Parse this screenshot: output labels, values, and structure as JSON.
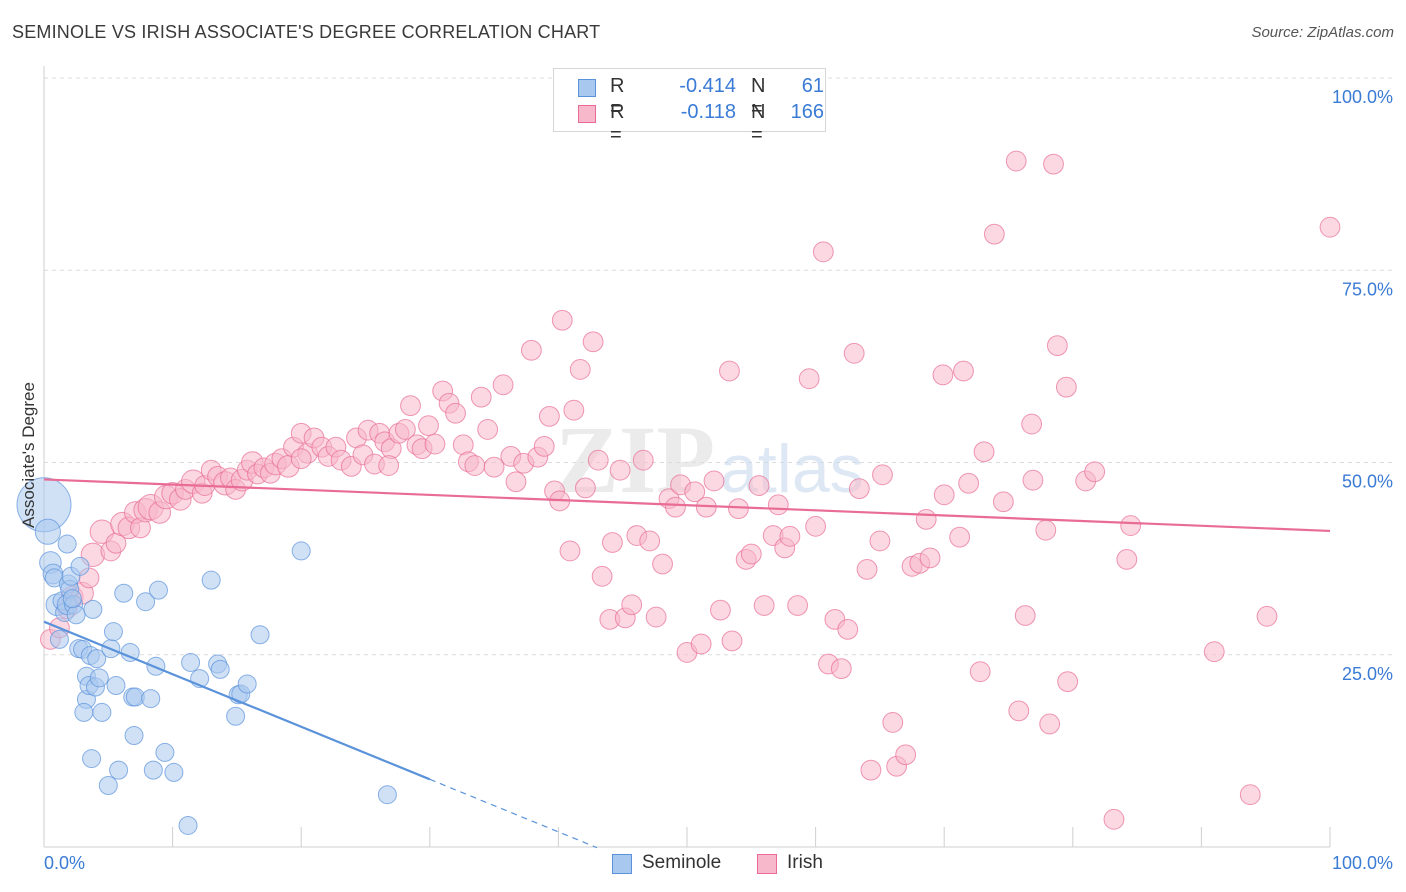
{
  "header": {
    "title": "SEMINOLE VS IRISH ASSOCIATE'S DEGREE CORRELATION CHART",
    "source": "Source: ZipAtlas.com"
  },
  "watermark": "ZIPatlas",
  "legend": {
    "rows": [
      {
        "r_label": "R =",
        "r_value": "-0.414",
        "n_label": "N =",
        "n_value": "61",
        "color": "#a9c8ef"
      },
      {
        "r_label": "R =",
        "r_value": "-0.118",
        "n_label": "N =",
        "n_value": "166",
        "color": "#f7b8cb"
      }
    ]
  },
  "bottom_legend": [
    "Seminole",
    "Irish"
  ],
  "chart_data": {
    "type": "scatter",
    "title": "SEMINOLE VS IRISH ASSOCIATE'S DEGREE CORRELATION CHART",
    "xlabel": "",
    "ylabel": "Associate's Degree",
    "xlim": [
      0,
      100
    ],
    "ylim": [
      0,
      100
    ],
    "x_tick_labels": [
      "0.0%",
      "100.0%"
    ],
    "y_tick_labels": [
      "100.0%",
      "75.0%",
      "50.0%",
      "25.0%"
    ],
    "grid": true,
    "legend_position": "top-center",
    "series": [
      {
        "name": "Seminole",
        "color": "#5b93db",
        "fill": "#a9c8ef",
        "trend": {
          "x": [
            0,
            30
          ],
          "y": [
            29.3,
            8.8
          ],
          "dashed_to_x": 43
        },
        "points": [
          [
            0,
            44.5,
            3
          ],
          [
            0.3,
            41,
            1.4
          ],
          [
            0.5,
            37,
            1.2
          ],
          [
            0.7,
            35.5,
            1.1
          ],
          [
            0.8,
            35,
            1
          ],
          [
            1,
            31.5,
            1.2
          ],
          [
            1.2,
            27,
            1
          ],
          [
            1.4,
            32,
            1
          ],
          [
            1.6,
            30.5,
            1
          ],
          [
            1.8,
            31.5,
            1.1
          ],
          [
            1.9,
            34.2,
            1
          ],
          [
            2,
            33.5,
            1
          ],
          [
            2.1,
            35.2,
            1
          ],
          [
            2.3,
            31.5,
            1
          ],
          [
            2.5,
            30.2,
            1
          ],
          [
            2.7,
            25.8,
            1
          ],
          [
            1.8,
            39.4,
            1
          ],
          [
            2.8,
            36.5,
            1
          ],
          [
            3,
            25.7,
            1
          ],
          [
            3.3,
            22.2,
            1
          ],
          [
            3.3,
            19.2,
            1
          ],
          [
            3.1,
            17.5,
            1
          ],
          [
            3.5,
            21,
            1
          ],
          [
            3.6,
            24.9,
            1
          ],
          [
            3.7,
            11.5,
            1
          ],
          [
            3.8,
            30.9,
            1
          ],
          [
            4,
            20.8,
            1
          ],
          [
            4.1,
            24.5,
            1
          ],
          [
            4.3,
            22,
            1
          ],
          [
            4.5,
            17.5,
            1
          ],
          [
            5,
            8,
            1
          ],
          [
            5.2,
            25.8,
            1
          ],
          [
            5.4,
            28,
            1
          ],
          [
            5.6,
            21,
            1
          ],
          [
            5.8,
            10,
            1
          ],
          [
            6.2,
            33,
            1
          ],
          [
            6.7,
            25.3,
            1
          ],
          [
            6.9,
            19.5,
            1
          ],
          [
            7,
            14.5,
            1
          ],
          [
            7.1,
            19.5,
            1
          ],
          [
            7.9,
            31.9,
            1
          ],
          [
            8.3,
            19.3,
            1
          ],
          [
            8.5,
            10,
            1
          ],
          [
            8.7,
            23.5,
            1
          ],
          [
            8.9,
            33.4,
            1
          ],
          [
            9.4,
            12.3,
            1
          ],
          [
            10.1,
            9.7,
            1
          ],
          [
            11.2,
            2.8,
            1
          ],
          [
            11.4,
            24,
            1
          ],
          [
            12.1,
            21.9,
            1
          ],
          [
            13,
            34.7,
            1
          ],
          [
            13.5,
            23.8,
            1
          ],
          [
            13.7,
            23.1,
            1
          ],
          [
            14.9,
            17,
            1
          ],
          [
            15.1,
            19.8,
            1
          ],
          [
            15.3,
            19.9,
            1
          ],
          [
            15.8,
            21.2,
            1
          ],
          [
            16.8,
            27.6,
            1
          ],
          [
            20,
            38.5,
            1
          ],
          [
            26.7,
            6.8,
            1
          ],
          [
            2.2,
            32.3,
            1
          ]
        ]
      },
      {
        "name": "Irish",
        "color": "#e86c96",
        "fill": "#f7b8cb",
        "trend": {
          "x": [
            0,
            100
          ],
          "y": [
            47.8,
            41.1
          ]
        },
        "points": [
          [
            0.5,
            27,
            1.1
          ],
          [
            1.2,
            28.5,
            1.1
          ],
          [
            1.8,
            31,
            1.1
          ],
          [
            2.2,
            32.5,
            1.2
          ],
          [
            3,
            33,
            1.2
          ],
          [
            3.5,
            35,
            1.1
          ],
          [
            3.8,
            38,
            1.3
          ],
          [
            4.5,
            41,
            1.3
          ],
          [
            5.2,
            38.5,
            1.1
          ],
          [
            5.6,
            39.5,
            1.1
          ],
          [
            6.1,
            42,
            1.3
          ],
          [
            6.6,
            41.5,
            1.2
          ],
          [
            7.1,
            43.5,
            1.2
          ],
          [
            7.5,
            41.5,
            1.1
          ],
          [
            7.9,
            43.8,
            1.3
          ],
          [
            8.3,
            44.2,
            1.4
          ],
          [
            9,
            43.5,
            1.2
          ],
          [
            9.5,
            45.5,
            1.3
          ],
          [
            10,
            46,
            1.2
          ],
          [
            10.6,
            45.2,
            1.2
          ],
          [
            11,
            46.5,
            1.1
          ],
          [
            11.6,
            47.5,
            1.3
          ],
          [
            12.3,
            46,
            1.1
          ],
          [
            12.5,
            47,
            1.1
          ],
          [
            13,
            49,
            1.1
          ],
          [
            13.5,
            48.2,
            1.1
          ],
          [
            14.1,
            47.3,
            1.3
          ],
          [
            14.5,
            48,
            1.1
          ],
          [
            14.9,
            46.5,
            1.1
          ],
          [
            15.4,
            47.7,
            1.2
          ],
          [
            15.8,
            49,
            1.1
          ],
          [
            16.2,
            50,
            1.2
          ],
          [
            16.6,
            48.5,
            1.1
          ],
          [
            17.1,
            49.3,
            1.1
          ],
          [
            17.6,
            48.6,
            1.1
          ],
          [
            18,
            49.8,
            1.2
          ],
          [
            18.5,
            50.5,
            1.1
          ],
          [
            19,
            49.5,
            1.2
          ],
          [
            19.4,
            52,
            1.1
          ],
          [
            20,
            53.8,
            1.1
          ],
          [
            20.5,
            51.2,
            1.1
          ],
          [
            21,
            53.2,
            1.1
          ],
          [
            21.6,
            52,
            1.1
          ],
          [
            22.1,
            50.8,
            1.1
          ],
          [
            22.7,
            52,
            1.1
          ],
          [
            23.1,
            50.3,
            1.1
          ],
          [
            23.9,
            49.5,
            1.1
          ],
          [
            24.3,
            53.2,
            1.1
          ],
          [
            24.8,
            51,
            1.1
          ],
          [
            25.2,
            54.2,
            1.1
          ],
          [
            25.7,
            49.8,
            1.1
          ],
          [
            26.1,
            53.8,
            1.1
          ],
          [
            26.5,
            52.7,
            1.1
          ],
          [
            27,
            51.8,
            1.1
          ],
          [
            27.6,
            53.8,
            1.1
          ],
          [
            28.1,
            54.3,
            1.1
          ],
          [
            28.5,
            57.4,
            1.1
          ],
          [
            29,
            52.3,
            1.1
          ],
          [
            29.4,
            51.8,
            1.1
          ],
          [
            29.9,
            54.8,
            1.1
          ],
          [
            30.4,
            52.4,
            1.1
          ],
          [
            31,
            59.3,
            1.1
          ],
          [
            31.5,
            57.7,
            1.1
          ],
          [
            32,
            56.4,
            1.1
          ],
          [
            32.6,
            52.3,
            1.1
          ],
          [
            33,
            50.1,
            1.1
          ],
          [
            33.5,
            49.6,
            1.1
          ],
          [
            34,
            58.5,
            1.1
          ],
          [
            34.5,
            54.3,
            1.1
          ],
          [
            35,
            49.4,
            1.1
          ],
          [
            35.7,
            60.1,
            1.1
          ],
          [
            36.3,
            50.8,
            1.1
          ],
          [
            36.7,
            47.5,
            1.1
          ],
          [
            37.3,
            49.9,
            1.1
          ],
          [
            37.9,
            64.6,
            1.1
          ],
          [
            38.4,
            50.7,
            1.1
          ],
          [
            38.9,
            52.1,
            1.1
          ],
          [
            39.3,
            56,
            1.1
          ],
          [
            39.7,
            46.3,
            1.1
          ],
          [
            40.1,
            45,
            1.1
          ],
          [
            40.3,
            68.5,
            1.1
          ],
          [
            40.9,
            38.5,
            1.1
          ],
          [
            41.2,
            56.8,
            1.1
          ],
          [
            41.7,
            62.1,
            1.1
          ],
          [
            42.1,
            46.7,
            1.1
          ],
          [
            42.7,
            65.7,
            1.1
          ],
          [
            43.1,
            50.3,
            1.1
          ],
          [
            43.4,
            35.2,
            1.1
          ],
          [
            44,
            29.6,
            1.1
          ],
          [
            44.2,
            39.6,
            1.1
          ],
          [
            44.8,
            49,
            1.1
          ],
          [
            45.2,
            29.8,
            1.1
          ],
          [
            45.7,
            31.5,
            1.1
          ],
          [
            46.1,
            40.5,
            1.1
          ],
          [
            46.6,
            50.3,
            1.1
          ],
          [
            47.1,
            39.8,
            1.1
          ],
          [
            47.6,
            29.9,
            1.1
          ],
          [
            48.1,
            36.8,
            1.1
          ],
          [
            48.6,
            45.3,
            1.1
          ],
          [
            49.1,
            44.2,
            1.1
          ],
          [
            49.5,
            47.1,
            1.1
          ],
          [
            50,
            25.3,
            1.1
          ],
          [
            50.6,
            46.2,
            1.1
          ],
          [
            51.1,
            26.4,
            1.1
          ],
          [
            51.5,
            44.2,
            1.1
          ],
          [
            52.1,
            47.6,
            1.1
          ],
          [
            52.6,
            30.8,
            1.1
          ],
          [
            53.3,
            61.9,
            1.1
          ],
          [
            53.5,
            26.8,
            1.1
          ],
          [
            54,
            44,
            1.1
          ],
          [
            54.6,
            37.4,
            1.1
          ],
          [
            55,
            38.1,
            1.1
          ],
          [
            55.6,
            47,
            1.1
          ],
          [
            56,
            31.4,
            1.1
          ],
          [
            56.7,
            40.5,
            1.1
          ],
          [
            57.1,
            44.5,
            1.1
          ],
          [
            57.6,
            38.9,
            1.1
          ],
          [
            58,
            40.4,
            1.1
          ],
          [
            58.6,
            31.4,
            1.1
          ],
          [
            59.5,
            60.9,
            1.1
          ],
          [
            60,
            41.7,
            1.1
          ],
          [
            60.6,
            77.4,
            1.1
          ],
          [
            61,
            23.8,
            1.1
          ],
          [
            61.5,
            29.6,
            1.1
          ],
          [
            62,
            23.2,
            1.1
          ],
          [
            62.5,
            28.3,
            1.1
          ],
          [
            63,
            64.2,
            1.1
          ],
          [
            63.4,
            46.6,
            1.1
          ],
          [
            64,
            36.1,
            1.1
          ],
          [
            64.3,
            10,
            1.1
          ],
          [
            65,
            39.8,
            1.1
          ],
          [
            65.2,
            48.4,
            1.1
          ],
          [
            66,
            16.2,
            1.1
          ],
          [
            66.3,
            10.5,
            1.1
          ],
          [
            67,
            12,
            1.1
          ],
          [
            67.5,
            36.5,
            1.1
          ],
          [
            68.1,
            36.9,
            1.1
          ],
          [
            68.6,
            42.6,
            1.1
          ],
          [
            68.9,
            37.6,
            1.1
          ],
          [
            69.9,
            61.4,
            1.1
          ],
          [
            70,
            45.8,
            1.1
          ],
          [
            71.2,
            40.3,
            1.1
          ],
          [
            71.5,
            61.9,
            1.1
          ],
          [
            71.9,
            47.3,
            1.1
          ],
          [
            72.8,
            22.8,
            1.1
          ],
          [
            73.1,
            51.4,
            1.1
          ],
          [
            73.9,
            79.7,
            1.1
          ],
          [
            74.6,
            44.9,
            1.1
          ],
          [
            75.6,
            89.2,
            1.1
          ],
          [
            75.8,
            17.7,
            1.1
          ],
          [
            76.3,
            30.1,
            1.1
          ],
          [
            76.8,
            55,
            1.1
          ],
          [
            76.9,
            47.7,
            1.1
          ],
          [
            77.9,
            41.2,
            1.1
          ],
          [
            78.2,
            16,
            1.1
          ],
          [
            78.5,
            88.8,
            1.1
          ],
          [
            78.8,
            65.2,
            1.1
          ],
          [
            79.5,
            59.8,
            1.1
          ],
          [
            79.6,
            21.5,
            1.1
          ],
          [
            81,
            47.6,
            1.1
          ],
          [
            81.7,
            48.8,
            1.1
          ],
          [
            83.2,
            3.6,
            1.1
          ],
          [
            84.2,
            37.4,
            1.1
          ],
          [
            84.5,
            41.8,
            1.1
          ],
          [
            91,
            25.4,
            1.1
          ],
          [
            93.8,
            6.8,
            1.1
          ],
          [
            95.1,
            30,
            1.1
          ],
          [
            100,
            80.6,
            1.1
          ],
          [
            20,
            50.5,
            1.1
          ],
          [
            26.8,
            49.6,
            1.1
          ]
        ]
      }
    ]
  }
}
